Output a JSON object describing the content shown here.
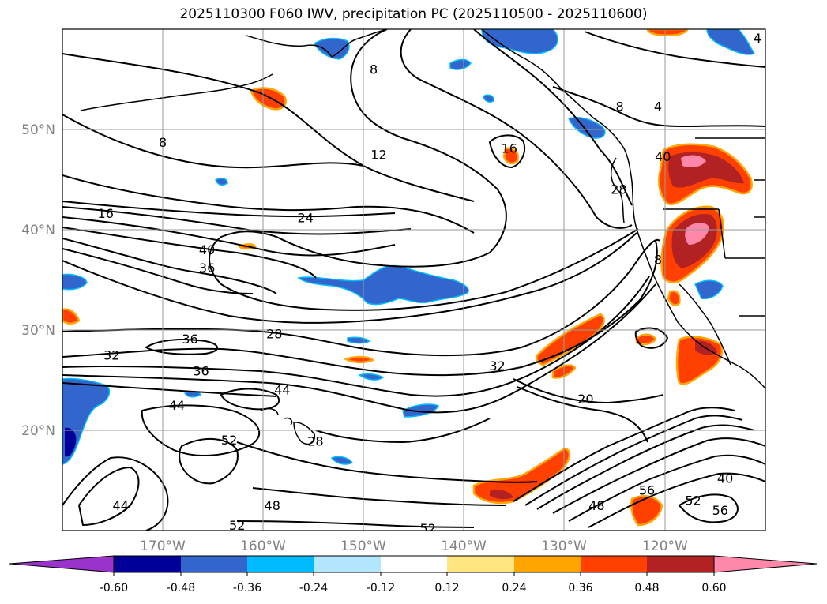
{
  "title": "2025110300 F060 IWV, precipitation PC (2025110500 - 2025110600)",
  "latitude_labels": [
    "50°N",
    "40°N",
    "30°N",
    "20°N"
  ],
  "longitude_labels": [
    "170°W",
    "160°W",
    "150°W",
    "140°W",
    "130°W",
    "120°W"
  ],
  "map_extent": {
    "lon_min": -180,
    "lon_max": -110,
    "lat_min": 10,
    "lat_max": 60
  },
  "gridlines": {
    "lons": [
      -170,
      -160,
      -150,
      -140,
      -130,
      -120
    ],
    "lats": [
      20,
      30,
      40,
      50
    ]
  },
  "colorbar": {
    "ticks": [
      "-0.60",
      "-0.48",
      "-0.36",
      "-0.24",
      "-0.12",
      "0.12",
      "0.24",
      "0.36",
      "0.48",
      "0.60"
    ],
    "boundaries": [
      -0.6,
      -0.48,
      -0.36,
      -0.24,
      -0.12,
      0.12,
      0.24,
      0.36,
      0.48,
      0.6
    ],
    "colors": [
      "#9933cc",
      "#000099",
      "#3366cc",
      "#00bbff",
      "#b3e6ff",
      "#ffffff",
      "#ffe680",
      "#ffa500",
      "#ff4000",
      "#b22222",
      "#ff88aa"
    ],
    "extend": "both"
  },
  "contour_labels": [
    {
      "text": "8",
      "lon": -170,
      "lat": 48.7
    },
    {
      "text": "8",
      "lon": -149,
      "lat": 56
    },
    {
      "text": "8",
      "lon": -124.5,
      "lat": 52.3
    },
    {
      "text": "4",
      "lon": -120.7,
      "lat": 52.3
    },
    {
      "text": "4",
      "lon": -110.8,
      "lat": 59.1
    },
    {
      "text": "12",
      "lon": -148.5,
      "lat": 47.5
    },
    {
      "text": "16",
      "lon": -135.5,
      "lat": 48.1
    },
    {
      "text": "16",
      "lon": -175.7,
      "lat": 41.6
    },
    {
      "text": "24",
      "lon": -155.8,
      "lat": 41.2
    },
    {
      "text": "40",
      "lon": -165.6,
      "lat": 38.0
    },
    {
      "text": "36",
      "lon": -165.6,
      "lat": 36.2
    },
    {
      "text": "28",
      "lon": -158.9,
      "lat": 29.6
    },
    {
      "text": "36",
      "lon": -167.3,
      "lat": 29.1
    },
    {
      "text": "32",
      "lon": -175.1,
      "lat": 27.5
    },
    {
      "text": "36",
      "lon": -166.2,
      "lat": 25.9
    },
    {
      "text": "32",
      "lon": -136.7,
      "lat": 26.4
    },
    {
      "text": "44",
      "lon": -158.1,
      "lat": 24.0
    },
    {
      "text": "44",
      "lon": -168.6,
      "lat": 22.5
    },
    {
      "text": "20",
      "lon": -127.9,
      "lat": 23.1
    },
    {
      "text": "52",
      "lon": -163.4,
      "lat": 19.0
    },
    {
      "text": "28",
      "lon": -154.8,
      "lat": 18.9
    },
    {
      "text": "44",
      "lon": -174.2,
      "lat": 12.5
    },
    {
      "text": "48",
      "lon": -159.1,
      "lat": 12.5
    },
    {
      "text": "52",
      "lon": -162.6,
      "lat": 10.5
    },
    {
      "text": "52",
      "lon": -143.6,
      "lat": 10.2
    },
    {
      "text": "48",
      "lon": -126.8,
      "lat": 12.5
    },
    {
      "text": "56",
      "lon": -121.8,
      "lat": 14.0
    },
    {
      "text": "52",
      "lon": -117.2,
      "lat": 13.0
    },
    {
      "text": "56",
      "lon": -114.5,
      "lat": 12.0
    },
    {
      "text": "40",
      "lon": -114.0,
      "lat": 15.2
    },
    {
      "text": "40",
      "lon": -120.2,
      "lat": 47.3
    },
    {
      "text": "28",
      "lon": -124.6,
      "lat": 44.0
    },
    {
      "text": "8",
      "lon": -120.7,
      "lat": 37.0
    }
  ]
}
